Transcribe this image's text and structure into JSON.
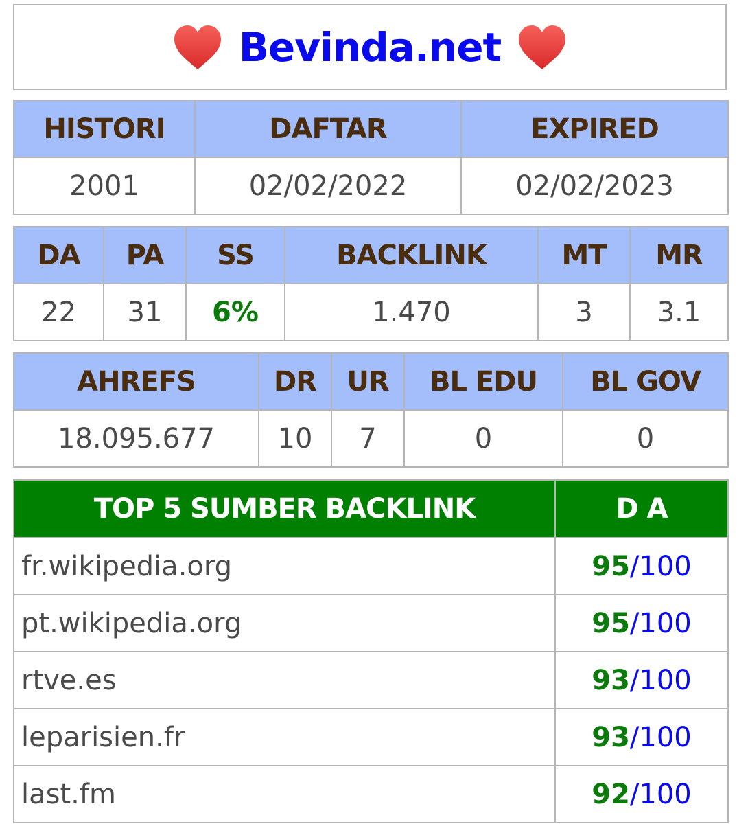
{
  "header": {
    "title": "Bevinda.net",
    "left_icon": "heart-icon",
    "right_icon": "heart-icon",
    "heart_color": "#e8403a",
    "title_color": "#0a0aef"
  },
  "registration": {
    "headers": [
      "HISTORI",
      "DAFTAR",
      "EXPIRED"
    ],
    "values": [
      "2001",
      "02/02/2022",
      "02/02/2023"
    ]
  },
  "metrics": {
    "headers": [
      "DA",
      "PA",
      "SS",
      "BACKLINK",
      "MT",
      "MR"
    ],
    "values": [
      "22",
      "31",
      "6%",
      "1.470",
      "3",
      "3.1"
    ]
  },
  "ahrefs": {
    "headers": [
      "AHREFS",
      "DR",
      "UR",
      "BL EDU",
      "BL GOV"
    ],
    "values": [
      "18.095.677",
      "10",
      "7",
      "0",
      "0"
    ]
  },
  "top_backlinks": {
    "header_source": "TOP 5 SUMBER BACKLINK",
    "header_da": "D A",
    "rows": [
      {
        "domain": "fr.wikipedia.org",
        "score": "95",
        "max": "/100"
      },
      {
        "domain": "pt.wikipedia.org",
        "score": "95",
        "max": "/100"
      },
      {
        "domain": "rtve.es",
        "score": "93",
        "max": "/100"
      },
      {
        "domain": "leparisien.fr",
        "score": "93",
        "max": "/100"
      },
      {
        "domain": "last.fm",
        "score": "92",
        "max": "/100"
      }
    ]
  },
  "colors": {
    "header_bg": "#a4bdfb",
    "header_text": "#4a2c0f",
    "green_header_bg": "#008000",
    "score_green": "#0a7a0a",
    "max_blue": "#0a0aef"
  }
}
